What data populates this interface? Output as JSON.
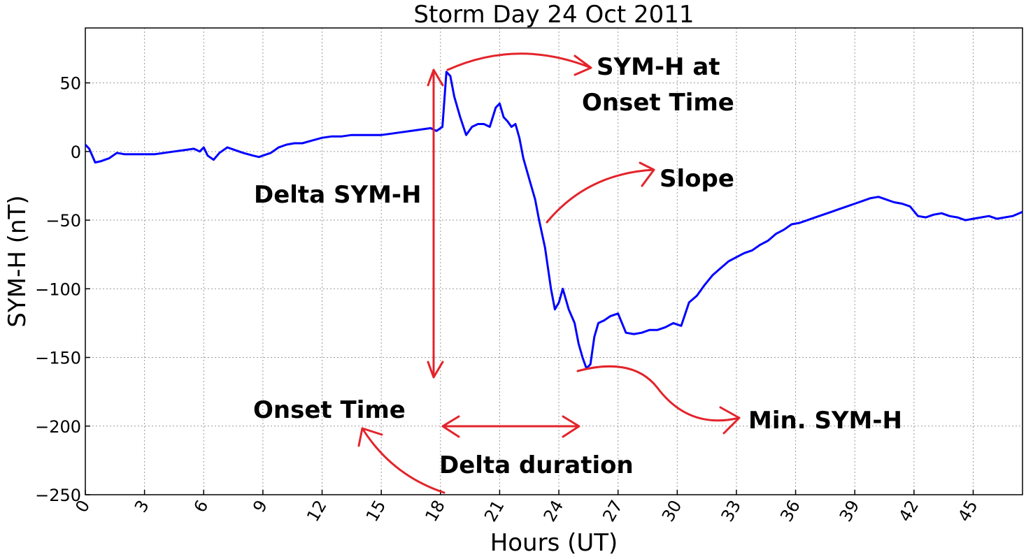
{
  "chart_data": {
    "type": "line",
    "title": "Storm Day 24 Oct 2011",
    "xlabel": "Hours (UT)",
    "ylabel": "SYM-H (nT)",
    "xlim": [
      0,
      47.5
    ],
    "ylim": [
      -250,
      90
    ],
    "xticks": [
      0,
      3,
      6,
      9,
      12,
      15,
      18,
      21,
      24,
      27,
      30,
      33,
      36,
      39,
      42,
      45
    ],
    "yticks": [
      50,
      0,
      -50,
      -100,
      -150,
      -200,
      -250
    ],
    "ytick_labels": [
      "50",
      "0",
      "−50",
      "−100",
      "−150",
      "−200",
      "−250"
    ],
    "grid": true,
    "line_color": "#0000ff",
    "annotation_color": "#e3242b",
    "series": [
      {
        "x": [
          0,
          0.2,
          0.5,
          0.8,
          1.2,
          1.6,
          2.0,
          2.5,
          3.0,
          3.5,
          4.0,
          4.5,
          5.0,
          5.5,
          5.8,
          6.0,
          6.2,
          6.5,
          6.8,
          7.2,
          7.6,
          8.0,
          8.5,
          8.8,
          9.0,
          9.4,
          9.8,
          10.2,
          10.6,
          11.0,
          11.5,
          12.0,
          12.5,
          13.0,
          13.5,
          14.0,
          14.5,
          15.0,
          15.5,
          16.0,
          16.5,
          17.0,
          17.5,
          17.8,
          18.1,
          18.3,
          18.5,
          18.7,
          19.0,
          19.3,
          19.6,
          19.9,
          20.2,
          20.5,
          20.8,
          21.0,
          21.2,
          21.4,
          21.6,
          21.8,
          22.0,
          22.2,
          22.5,
          22.8,
          23.0,
          23.3,
          23.6,
          23.8,
          24.0,
          24.2,
          24.5,
          24.8,
          25.0,
          25.2,
          25.4,
          25.6,
          25.8,
          26.0,
          26.3,
          26.6,
          27.0,
          27.4,
          27.8,
          28.2,
          28.6,
          29.0,
          29.4,
          29.8,
          30.2,
          30.6,
          31.0,
          31.4,
          31.8,
          32.2,
          32.6,
          33.0,
          33.4,
          33.8,
          34.2,
          34.6,
          35.0,
          35.4,
          35.8,
          36.2,
          36.6,
          37.0,
          37.4,
          37.8,
          38.2,
          38.6,
          39.0,
          39.4,
          39.8,
          40.2,
          40.6,
          41.0,
          41.4,
          41.8,
          42.2,
          42.6,
          43.0,
          43.4,
          43.8,
          44.2,
          44.6,
          45.0,
          45.4,
          45.8,
          46.2,
          46.6,
          47.0,
          47.5
        ],
        "y": [
          5,
          2,
          -8,
          -7,
          -5,
          -1,
          -2,
          -2,
          -2,
          -2,
          -1,
          0,
          1,
          2,
          0,
          3,
          -3,
          -6,
          -1,
          3,
          1,
          -1,
          -3,
          -4,
          -3,
          -1,
          3,
          5,
          6,
          6,
          8,
          10,
          11,
          11,
          12,
          12,
          12,
          12,
          13,
          14,
          15,
          16,
          17,
          15,
          18,
          58,
          55,
          40,
          25,
          12,
          18,
          20,
          20,
          18,
          32,
          35,
          25,
          22,
          18,
          20,
          10,
          -5,
          -20,
          -35,
          -50,
          -70,
          -100,
          -115,
          -110,
          -100,
          -115,
          -125,
          -140,
          -150,
          -158,
          -155,
          -135,
          -125,
          -123,
          -120,
          -118,
          -132,
          -133,
          -132,
          -130,
          -130,
          -128,
          -125,
          -127,
          -110,
          -105,
          -97,
          -90,
          -85,
          -80,
          -77,
          -74,
          -72,
          -68,
          -65,
          -60,
          -57,
          -53,
          -52,
          -50,
          -48,
          -46,
          -44,
          -42,
          -40,
          -38,
          -36,
          -34,
          -33,
          -35,
          -37,
          -38,
          -40,
          -47,
          -48,
          -46,
          -45,
          -47,
          -48,
          -50,
          -49,
          -48,
          -47,
          -49,
          -48,
          -47,
          -44
        ]
      }
    ],
    "annotations": [
      {
        "text": "SYM-H at"
      },
      {
        "text": "Onset Time"
      },
      {
        "text": "Slope"
      },
      {
        "text": "Delta SYM-H"
      },
      {
        "text": "Min. SYM-H"
      },
      {
        "text": "Onset Time"
      },
      {
        "text": "Delta duration"
      }
    ]
  }
}
